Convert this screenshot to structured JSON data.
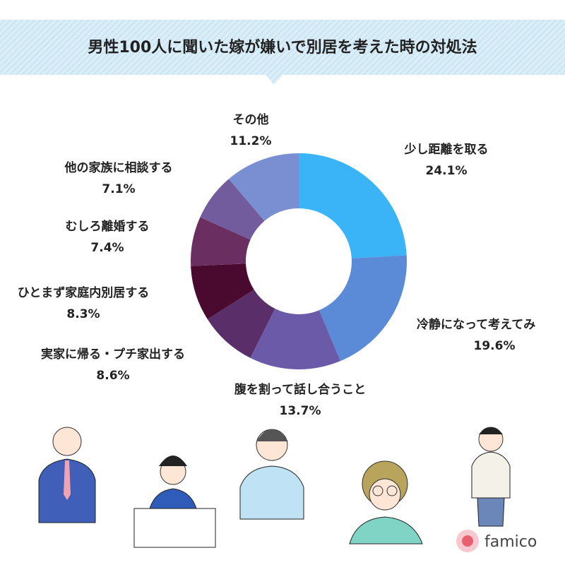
{
  "chart_data": {
    "type": "donut",
    "title": "男性100人に聞いた嫁が嫌いで別居を考えた時の対処法",
    "categories": [
      "少し距離を取る",
      "冷静になって考えてみ",
      "腹を割って話し合うこと",
      "実家に帰る・プチ家出する",
      "ひとまず家庭内別居する",
      "むしろ離婚する",
      "他の家族に相談する",
      "その他"
    ],
    "values": [
      24.1,
      19.6,
      13.7,
      8.6,
      8.3,
      7.4,
      7.1,
      11.2
    ],
    "value_labels": [
      "24.1%",
      "19.6%",
      "13.7%",
      "8.6%",
      "8.3%",
      "7.4%",
      "7.1%",
      "11.2%"
    ],
    "colors": [
      "#3bb4f7",
      "#5b8ad6",
      "#6a5aa8",
      "#5a2e68",
      "#4a0a30",
      "#6b2e60",
      "#735c9e",
      "#7a8fd2"
    ]
  },
  "logo": "famico"
}
